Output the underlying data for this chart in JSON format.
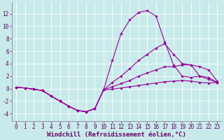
{
  "background_color": "#c8eaea",
  "grid_color": "#b0d8d8",
  "line_color": "#990099",
  "marker": "D",
  "marker_size": 1.8,
  "line_width": 0.8,
  "xlabel": "Windchill (Refroidissement éolien,°C)",
  "xlabel_fontsize": 6.5,
  "tick_fontsize": 5.5,
  "xlim": [
    -0.5,
    23.5
  ],
  "ylim": [
    -5.2,
    13.8
  ],
  "yticks": [
    -4,
    -2,
    0,
    2,
    4,
    6,
    8,
    10,
    12
  ],
  "xticks": [
    0,
    1,
    2,
    3,
    4,
    5,
    6,
    7,
    8,
    9,
    10,
    11,
    12,
    13,
    14,
    15,
    16,
    17,
    18,
    19,
    20,
    21,
    22,
    23
  ],
  "lines": [
    {
      "x": [
        0,
        1,
        2,
        3,
        4,
        5,
        6,
        7,
        8,
        9,
        10,
        11,
        12,
        13,
        14,
        15,
        16,
        17,
        18,
        19,
        20,
        21,
        22,
        23
      ],
      "y": [
        0.2,
        0.1,
        -0.1,
        -0.3,
        -1.2,
        -2.0,
        -2.8,
        -3.5,
        -3.7,
        -3.2,
        -0.2,
        4.5,
        8.8,
        11.0,
        12.2,
        12.5,
        11.6,
        7.5,
        3.8,
        2.0,
        1.8,
        2.0,
        1.8,
        1.0
      ]
    },
    {
      "x": [
        0,
        1,
        2,
        3,
        4,
        5,
        6,
        7,
        8,
        9,
        10,
        11,
        12,
        13,
        14,
        15,
        16,
        17,
        18,
        19,
        20,
        21,
        22,
        23
      ],
      "y": [
        0.2,
        0.1,
        -0.1,
        -0.3,
        -1.2,
        -2.0,
        -2.8,
        -3.5,
        -3.7,
        -3.2,
        -0.2,
        1.0,
        2.0,
        3.2,
        4.5,
        5.5,
        6.5,
        7.2,
        5.5,
        4.0,
        3.8,
        3.5,
        3.0,
        1.2
      ]
    },
    {
      "x": [
        0,
        1,
        2,
        3,
        4,
        5,
        6,
        7,
        8,
        9,
        10,
        11,
        12,
        13,
        14,
        15,
        16,
        17,
        18,
        19,
        20,
        21,
        22,
        23
      ],
      "y": [
        0.2,
        0.1,
        -0.1,
        -0.3,
        -1.2,
        -2.0,
        -2.8,
        -3.5,
        -3.7,
        -3.2,
        -0.2,
        0.3,
        0.8,
        1.3,
        2.0,
        2.5,
        3.0,
        3.5,
        3.5,
        3.8,
        3.8,
        2.0,
        1.5,
        1.0
      ]
    },
    {
      "x": [
        0,
        1,
        2,
        3,
        4,
        5,
        6,
        7,
        8,
        9,
        10,
        11,
        12,
        13,
        14,
        15,
        16,
        17,
        18,
        19,
        20,
        21,
        22,
        23
      ],
      "y": [
        0.2,
        0.1,
        -0.1,
        -0.3,
        -1.2,
        -2.0,
        -2.8,
        -3.5,
        -3.7,
        -3.2,
        -0.2,
        -0.1,
        0.1,
        0.3,
        0.5,
        0.7,
        0.9,
        1.1,
        1.2,
        1.3,
        1.2,
        1.0,
        0.9,
        1.0
      ]
    }
  ]
}
